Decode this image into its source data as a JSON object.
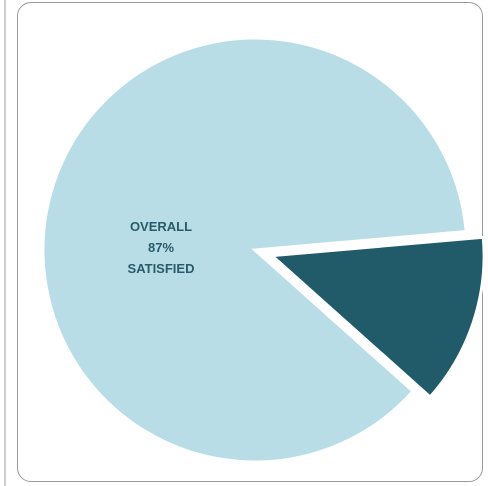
{
  "chart_data": {
    "type": "pie",
    "slices": [
      {
        "value": 87,
        "color": "#b8dde7",
        "exploded": false
      },
      {
        "value": 13,
        "color": "#215a68",
        "exploded": true
      }
    ],
    "annotations": {
      "line1": "OVERALL",
      "line2": "87%",
      "line3": "SATISFIED"
    }
  }
}
